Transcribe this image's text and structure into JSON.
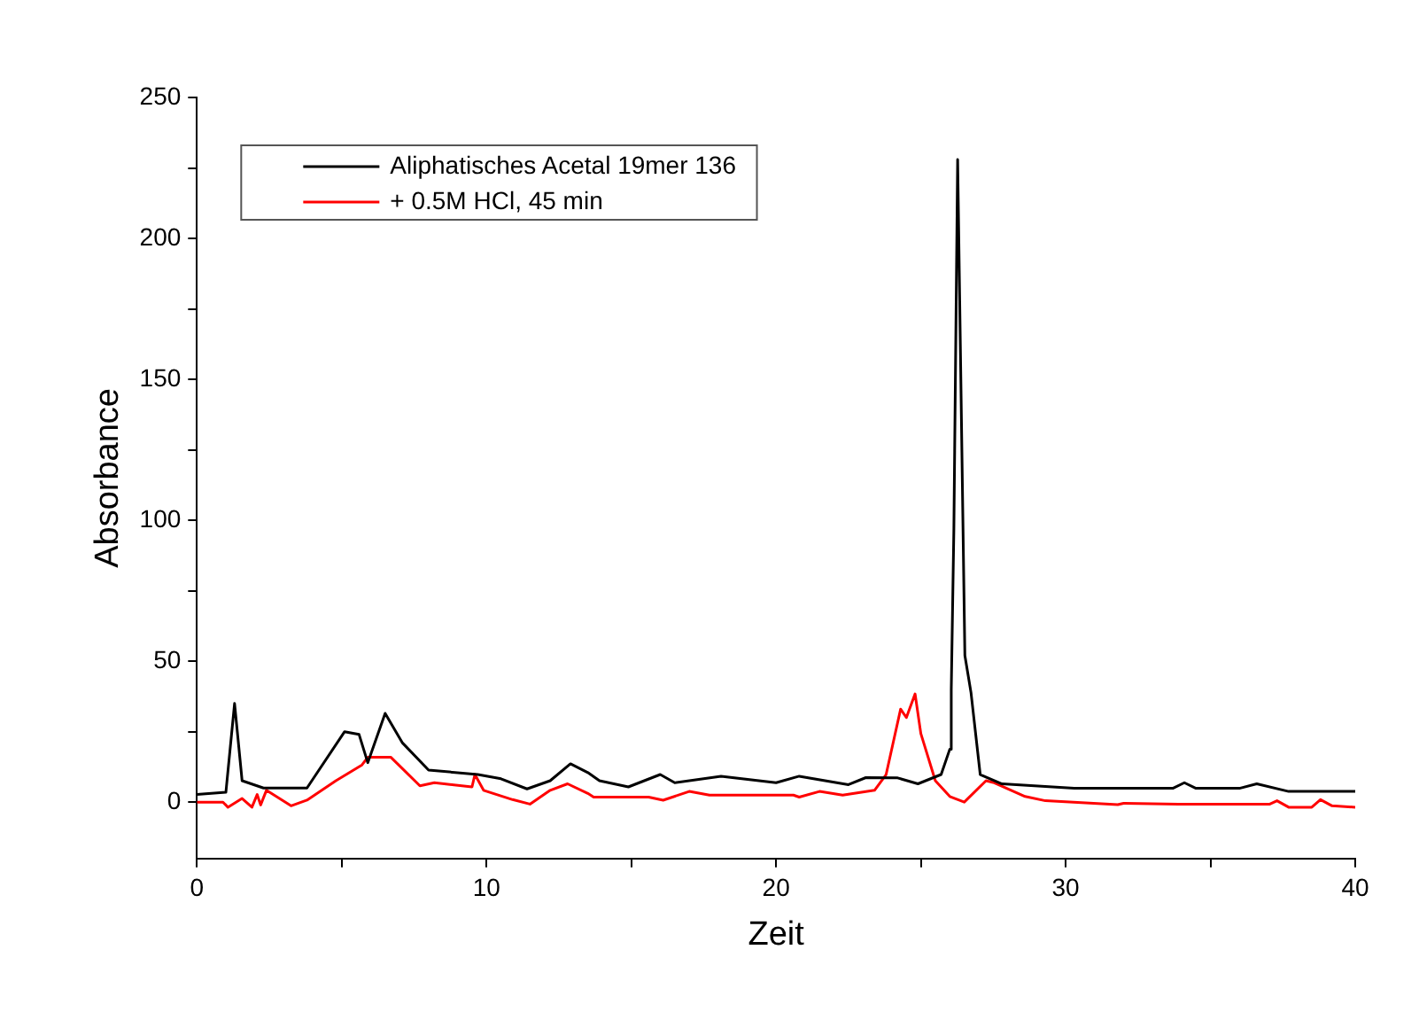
{
  "chart_data": {
    "type": "line",
    "xlabel": "Zeit",
    "ylabel": "Absorbance",
    "xlim": [
      0,
      40
    ],
    "ylim": [
      -20,
      250
    ],
    "xticks": [
      0,
      {
        "value": 5,
        "label": null
      },
      10,
      {
        "value": 15,
        "label": null
      },
      20,
      {
        "value": 25,
        "label": null
      },
      30,
      {
        "value": 35,
        "label": null
      },
      40
    ],
    "yticks": [
      0,
      {
        "value": 25,
        "label": null
      },
      50,
      {
        "value": 75,
        "label": null
      },
      100,
      {
        "value": 125,
        "label": null
      },
      150,
      {
        "value": 175,
        "label": null
      },
      200,
      {
        "value": 225,
        "label": null
      },
      250
    ],
    "grid": false,
    "legend": "top left",
    "marker": "none",
    "line_style": "solid",
    "series": [
      {
        "name": "Aliphatisches Acetal 19mer 136",
        "color": "#000000",
        "x": [
          0,
          1.0,
          1.3,
          1.56,
          2.3,
          3.8,
          5.1,
          5.6,
          5.9,
          6.5,
          7.1,
          8.0,
          9.7,
          10.5,
          11.4,
          12.2,
          12.9,
          13.5,
          13.9,
          14.9,
          16.0,
          16.5,
          18.1,
          20.0,
          20.8,
          22.5,
          23.1,
          24.2,
          24.9,
          25.7,
          26.0,
          26.05,
          26.14,
          26.27,
          26.52,
          26.73,
          27.05,
          27.8,
          30.3,
          33.7,
          34.1,
          34.5,
          36.0,
          36.6,
          37.7,
          40
        ],
        "values": [
          2.7,
          3.5,
          35,
          7.6,
          5,
          5,
          25,
          24,
          14,
          31.5,
          21,
          11.4,
          9.8,
          8.3,
          4.7,
          7.6,
          13.6,
          10.5,
          7.6,
          5.4,
          9.8,
          6.9,
          9.2,
          6.9,
          9.2,
          6.2,
          8.7,
          8.6,
          6.5,
          9.8,
          18.8,
          40,
          97,
          228,
          52,
          39,
          9.8,
          6.5,
          4.9,
          4.9,
          6.9,
          4.9,
          4.9,
          6.5,
          3.8,
          3.8
        ]
      },
      {
        "name": "+ 0.5M HCl, 45 min",
        "color": "#ff0000",
        "x": [
          0,
          0.9,
          1.07,
          1.56,
          1.9,
          2.08,
          2.2,
          2.4,
          3.25,
          3.8,
          4.8,
          5.7,
          5.9,
          6.7,
          7.7,
          8.2,
          9.5,
          9.6,
          9.9,
          10.9,
          11.5,
          12.2,
          12.8,
          13.5,
          13.7,
          15.6,
          16.1,
          17.0,
          17.7,
          20.6,
          20.8,
          21.5,
          22.3,
          23.4,
          23.8,
          24.3,
          24.5,
          24.8,
          25.0,
          25.5,
          26.0,
          26.5,
          27.25,
          27.5,
          28.6,
          29.3,
          31.8,
          32.0,
          33.9,
          37.05,
          37.3,
          37.7,
          38.5,
          38.8,
          39.2,
          40
        ],
        "values": [
          0,
          0,
          -1.8,
          1.3,
          -1.8,
          2.7,
          -1,
          4.2,
          -1.3,
          0.7,
          7.6,
          13.2,
          15.9,
          15.9,
          5.8,
          6.9,
          5.4,
          9.8,
          4.2,
          0.9,
          -0.7,
          4.2,
          6.5,
          3.1,
          1.8,
          1.8,
          0.7,
          3.8,
          2.5,
          2.5,
          1.8,
          3.8,
          2.5,
          4.2,
          9.8,
          33,
          30,
          38.4,
          24.3,
          7.6,
          2,
          0,
          7.6,
          7,
          2,
          0.5,
          -0.9,
          -0.4,
          -0.7,
          -0.7,
          0.5,
          -1.8,
          -1.8,
          0.9,
          -1.3,
          -1.8
        ]
      }
    ]
  }
}
